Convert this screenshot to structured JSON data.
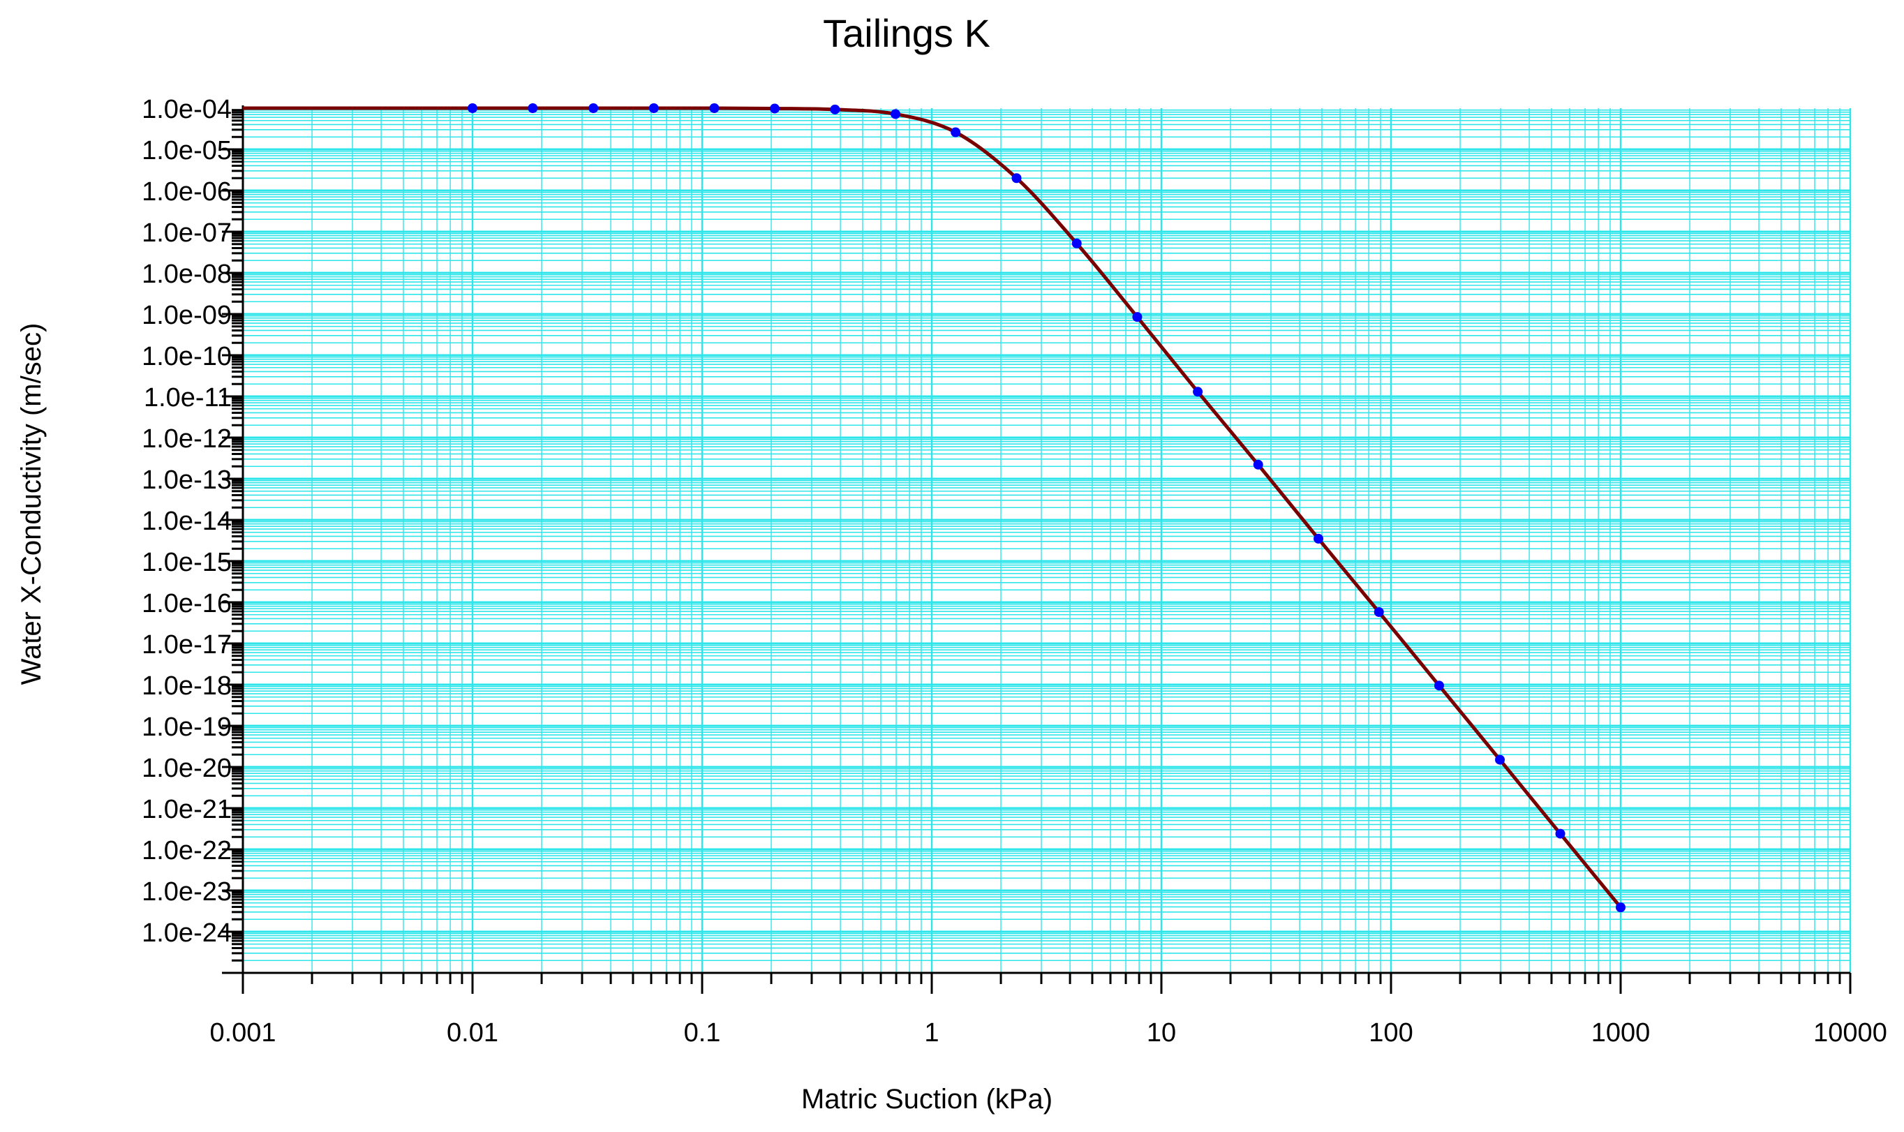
{
  "chart_data": {
    "type": "line",
    "title": "Tailings K",
    "xlabel": "Matric Suction (kPa)",
    "ylabel": "Water X-Conductivity (m/sec)",
    "x_scale": "log",
    "y_scale": "log",
    "xlim": [
      0.001,
      10000
    ],
    "ylim": [
      1e-25,
      0.0001
    ],
    "grid": true,
    "x_ticks": [
      "0.001",
      "0.01",
      "0.1",
      "1",
      "10",
      "100",
      "1000",
      "10000"
    ],
    "y_ticks": [
      "1.0e-04",
      "1.0e-05",
      "1.0e-06",
      "1.0e-07",
      "1.0e-08",
      "1.0e-09",
      "1.0e-10",
      "1.0e-11",
      "1.0e-12",
      "1.0e-13",
      "1.0e-14",
      "1.0e-15",
      "1.0e-16",
      "1.0e-17",
      "1.0e-18",
      "1.0e-19",
      "1.0e-20",
      "1.0e-21",
      "1.0e-22",
      "1.0e-23",
      "1.0e-24"
    ],
    "series": [
      {
        "line_color": "#7a0000",
        "marker_color": "#0000ff",
        "points": [
          {
            "x": 0.001,
            "y": 0.0001
          },
          {
            "x": 0.01,
            "y": 0.0001
          },
          {
            "x": 0.0183,
            "y": 0.0001
          },
          {
            "x": 0.0336,
            "y": 0.0001
          },
          {
            "x": 0.0616,
            "y": 0.0001
          },
          {
            "x": 0.113,
            "y": 0.0001
          },
          {
            "x": 0.207,
            "y": 9.8e-05
          },
          {
            "x": 0.379,
            "y": 9.3e-05
          },
          {
            "x": 0.695,
            "y": 7.2e-05
          },
          {
            "x": 1.27,
            "y": 2.6e-05
          },
          {
            "x": 2.34,
            "y": 2e-06
          },
          {
            "x": 4.28,
            "y": 5.2e-08
          },
          {
            "x": 7.85,
            "y": 8.5e-10
          },
          {
            "x": 14.4,
            "y": 1.3e-11
          },
          {
            "x": 26.4,
            "y": 2.2e-13
          },
          {
            "x": 48.3,
            "y": 3.5e-15
          },
          {
            "x": 88.6,
            "y": 5.8e-17
          },
          {
            "x": 162,
            "y": 9.5e-19
          },
          {
            "x": 298,
            "y": 1.5e-20
          },
          {
            "x": 546,
            "y": 2.4e-22
          },
          {
            "x": 1000,
            "y": 3.9e-24
          }
        ]
      }
    ]
  }
}
